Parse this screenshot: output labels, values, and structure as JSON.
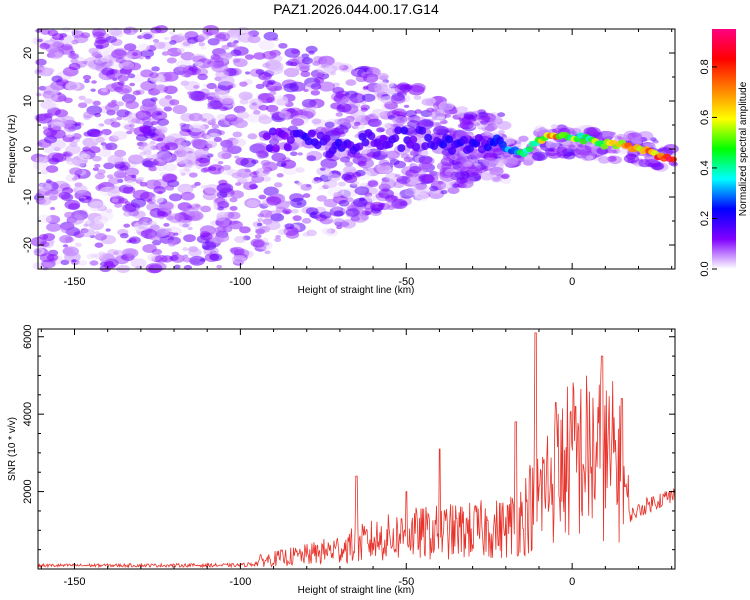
{
  "title": "PAZ1.2026.044.00.17.G14",
  "chart_data": [
    {
      "type": "heatmap",
      "xlabel": "Height of straight line (km)",
      "ylabel": "Frequency (Hz)",
      "xlim": [
        -161,
        31
      ],
      "ylim": [
        -25,
        25
      ],
      "xticks": [
        -150,
        -100,
        -50,
        0
      ],
      "yticks": [
        -20,
        -10,
        0,
        10,
        20
      ],
      "colorbar": {
        "label": "Normalized spectral amplitude",
        "range": [
          0,
          0.95
        ],
        "ticks": [
          0.0,
          0.2,
          0.4,
          0.6,
          0.8
        ],
        "colors": [
          "#ffffff",
          "#8000ff",
          "#0000ff",
          "#00ffff",
          "#00ff00",
          "#ffff00",
          "#ff8000",
          "#ff0000",
          "#ff0080"
        ]
      },
      "ridge": [
        {
          "x": -90,
          "freq": 2,
          "amp": 0.15
        },
        {
          "x": -80,
          "freq": 2.5,
          "amp": 0.2
        },
        {
          "x": -70,
          "freq": 0,
          "amp": 0.2
        },
        {
          "x": -60,
          "freq": 2,
          "amp": 0.15
        },
        {
          "x": -45,
          "freq": 2,
          "amp": 0.2
        },
        {
          "x": -35,
          "freq": 0,
          "amp": 0.2
        },
        {
          "x": -25,
          "freq": 2,
          "amp": 0.2
        },
        {
          "x": -20,
          "freq": 0,
          "amp": 0.3
        },
        {
          "x": -15,
          "freq": -1,
          "amp": 0.45
        },
        {
          "x": -10,
          "freq": 2,
          "amp": 0.55
        },
        {
          "x": -5,
          "freq": 3,
          "amp": 0.75
        },
        {
          "x": 0,
          "freq": 2.5,
          "amp": 0.55
        },
        {
          "x": 5,
          "freq": 2,
          "amp": 0.5
        },
        {
          "x": 10,
          "freq": 1,
          "amp": 0.6
        },
        {
          "x": 15,
          "freq": 1,
          "amp": 0.7
        },
        {
          "x": 20,
          "freq": 0,
          "amp": 0.75
        },
        {
          "x": 25,
          "freq": -1,
          "amp": 0.8
        },
        {
          "x": 31,
          "freq": -2,
          "amp": 0.95
        }
      ]
    },
    {
      "type": "line",
      "xlabel": "Height of straight line (km)",
      "ylabel": "SNR (10 * v/v)",
      "xlim": [
        -161,
        31
      ],
      "ylim": [
        0,
        6200
      ],
      "xticks": [
        -150,
        -100,
        -50,
        0
      ],
      "yticks": [
        2000,
        4000,
        6000
      ],
      "color": "#e8322a",
      "envelope": [
        {
          "x": -161,
          "y": 120
        },
        {
          "x": -100,
          "y": 130
        },
        {
          "x": -90,
          "y": 250
        },
        {
          "x": -80,
          "y": 350
        },
        {
          "x": -70,
          "y": 500
        },
        {
          "x": -60,
          "y": 700
        },
        {
          "x": -50,
          "y": 850
        },
        {
          "x": -40,
          "y": 900
        },
        {
          "x": -30,
          "y": 950
        },
        {
          "x": -20,
          "y": 1000
        },
        {
          "x": -15,
          "y": 1300
        },
        {
          "x": -10,
          "y": 1800
        },
        {
          "x": -5,
          "y": 2400
        },
        {
          "x": 0,
          "y": 2700
        },
        {
          "x": 5,
          "y": 2800
        },
        {
          "x": 10,
          "y": 2700
        },
        {
          "x": 15,
          "y": 2600
        },
        {
          "x": 17,
          "y": 1400
        },
        {
          "x": 25,
          "y": 1800
        },
        {
          "x": 31,
          "y": 1950
        }
      ],
      "spikes": [
        {
          "x": -65,
          "y": 2400
        },
        {
          "x": -50,
          "y": 2000
        },
        {
          "x": -40,
          "y": 3100
        },
        {
          "x": -17,
          "y": 3800
        },
        {
          "x": -11,
          "y": 6100
        },
        {
          "x": -5,
          "y": 4300
        },
        {
          "x": 1,
          "y": 4200
        },
        {
          "x": 9,
          "y": 5500
        },
        {
          "x": 15,
          "y": 4400
        }
      ]
    }
  ]
}
